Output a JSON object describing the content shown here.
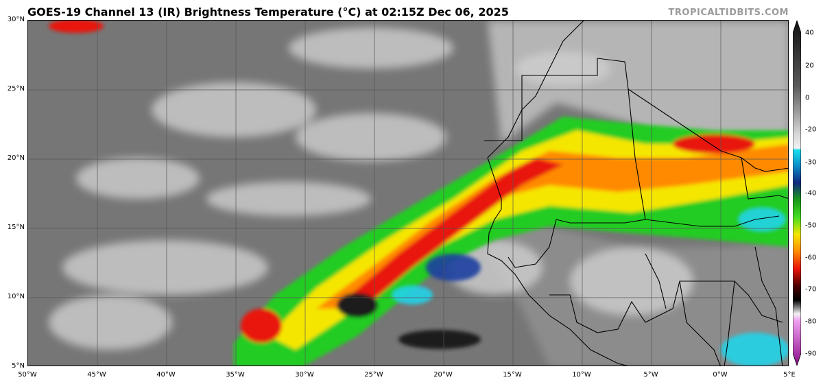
{
  "title": "GOES-19 Channel 13 (IR) Brightness Temperature (°C) at 02:15Z Dec 06, 2025",
  "credit": "TROPICALTIDBITS.COM",
  "lat_labels": [
    "30°N",
    "25°N",
    "20°N",
    "15°N",
    "10°N",
    "5°N"
  ],
  "lon_labels": [
    "50°W",
    "45°W",
    "40°W",
    "35°W",
    "30°W",
    "25°W",
    "20°W",
    "15°W",
    "10°W",
    "5°W",
    "0°W",
    "5°E"
  ],
  "colorbar": {
    "labels": [
      "40",
      "20",
      "0",
      "-20",
      "-30",
      "-40",
      "-50",
      "-60",
      "-70",
      "-80",
      "-90"
    ]
  },
  "colors": {
    "clear": "#7a7a7a",
    "low_cloud": "#c9c9c9",
    "cyan": "#22d3e8",
    "blue": "#1e3fa0",
    "green": "#22cc22",
    "yellow": "#f5e600",
    "orange": "#ff8a00",
    "red": "#e8140a",
    "black": "#1a1a1a"
  }
}
